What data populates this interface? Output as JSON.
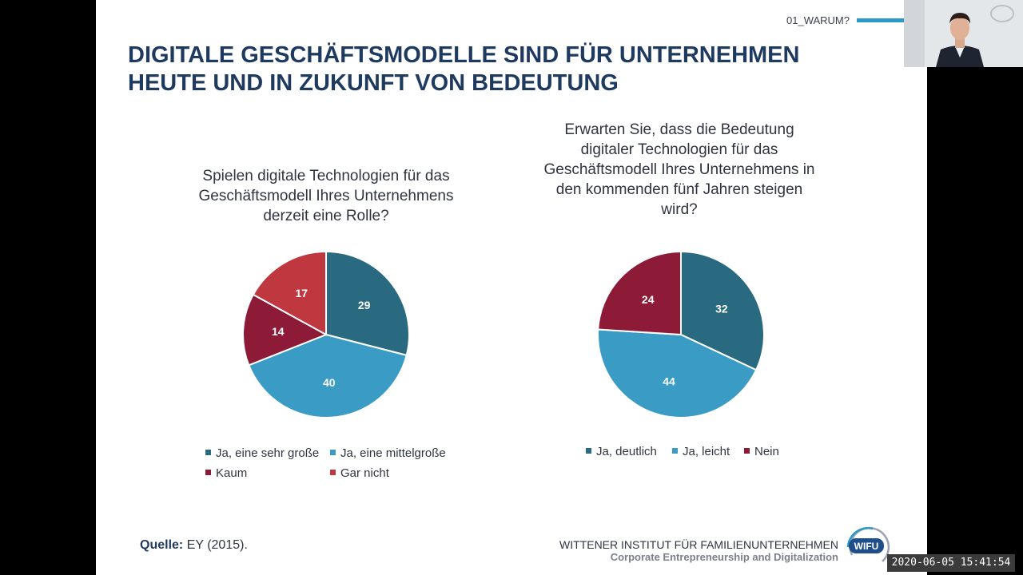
{
  "header": {
    "section_label": "01_WARUM?",
    "title_line1": "DIGITALE GESCHÄFTSMODELLE SIND FÜR UNTERNEHMEN",
    "title_line2": "HEUTE UND IN ZUKUNFT VON BEDEUTUNG"
  },
  "chart_data": [
    {
      "type": "pie",
      "title": "Spielen digitale Technologien für das Geschäftsmodell Ihres Unternehmens derzeit eine Rolle?",
      "title_lines": [
        "Spielen digitale Technologien für das",
        "Geschäftsmodell Ihres Unternehmens",
        "derzeit eine Rolle?"
      ],
      "categories": [
        "Ja, eine sehr große",
        "Ja, eine mittelgroße",
        "Kaum",
        "Gar nicht"
      ],
      "values": [
        29,
        40,
        14,
        17
      ],
      "data_labels": [
        "29",
        "40",
        "14",
        "17"
      ],
      "colors": [
        "#2a6a80",
        "#3a9cc4",
        "#8d1a36",
        "#c0383f"
      ],
      "legend_position": "bottom"
    },
    {
      "type": "pie",
      "title": "Erwarten Sie, dass die Bedeutung digitaler Technologien für das Geschäftsmodell Ihres Unternehmens in den kommenden fünf Jahren steigen wird?",
      "title_lines": [
        "Erwarten Sie, dass die Bedeutung",
        "digitaler Technologien für das",
        "Geschäftsmodell Ihres Unternehmens in",
        "den kommenden fünf Jahren steigen",
        "wird?"
      ],
      "categories": [
        "Ja, deutlich",
        "Ja, leicht",
        "Nein"
      ],
      "values": [
        32,
        44,
        24
      ],
      "data_labels": [
        "32",
        "44",
        "24"
      ],
      "colors": [
        "#2a6a80",
        "#3a9cc4",
        "#8d1a36"
      ],
      "legend_position": "bottom"
    }
  ],
  "footer": {
    "source_label": "Quelle:",
    "source_text": "EY (2015).",
    "institute": "WITTENER INSTITUT FÜR FAMILIENUNTERNEHMEN",
    "institute_sub": "Corporate Entrepreneurship and Digitalization",
    "logo_text": "WIFU"
  },
  "overlay": {
    "timestamp": "2020-06-05 15:41:54"
  }
}
